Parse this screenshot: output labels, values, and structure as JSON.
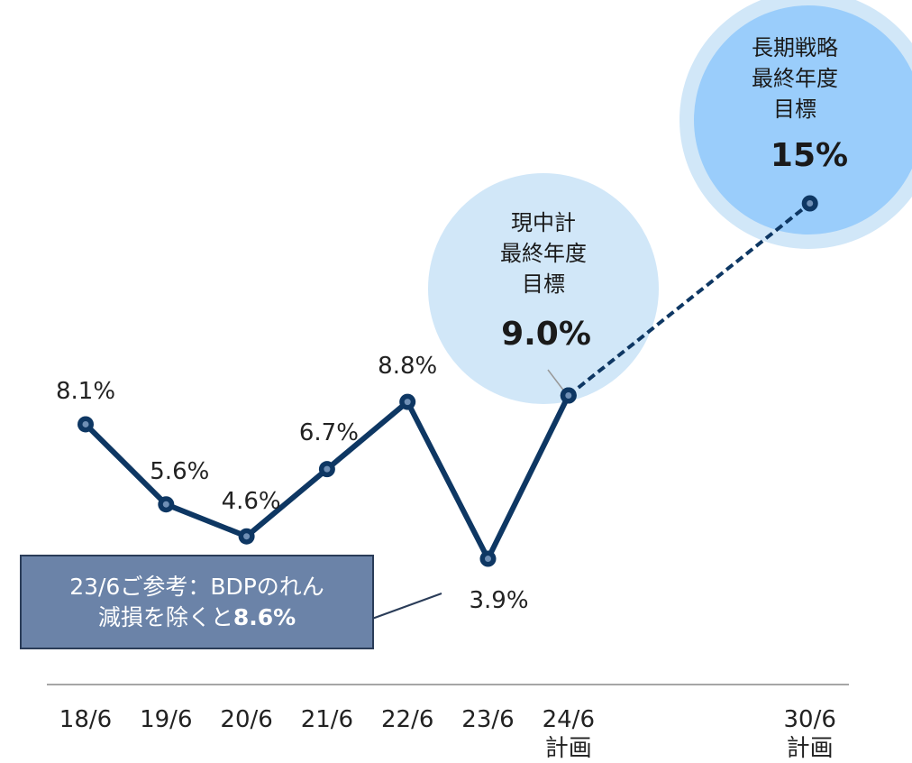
{
  "chart_data": {
    "type": "line",
    "categories": [
      "18/6",
      "19/6",
      "20/6",
      "21/6",
      "22/6",
      "23/6",
      "24/6\n計画",
      null,
      null,
      "30/6\n計画"
    ],
    "series": [
      {
        "color": "#0e3763",
        "dash": false,
        "values": [
          8.1,
          5.6,
          4.6,
          6.7,
          8.8,
          3.9,
          9.0,
          null,
          null,
          null
        ],
        "value_labels": [
          "8.1%",
          "5.6%",
          "4.6%",
          "6.7%",
          "8.8%",
          "3.9%",
          "9.0%",
          null,
          null,
          null
        ]
      },
      {
        "color": "#0e3763",
        "dash": true,
        "connect_gaps": true,
        "values": [
          null,
          null,
          null,
          null,
          null,
          null,
          9.0,
          null,
          null,
          15
        ],
        "value_labels": [
          null,
          null,
          null,
          null,
          null,
          null,
          null,
          null,
          null,
          "15%"
        ]
      }
    ],
    "ylim": [
      0,
      21
    ],
    "annotations": [
      {
        "text": "現中計\n最終年度\n目標"
      },
      {
        "text": "長期戦略\n最終年度\n目標"
      },
      {
        "text": "23/6ご参考：BDPのれん\n減損を除くと",
        "highlight": "8.6%"
      }
    ]
  }
}
